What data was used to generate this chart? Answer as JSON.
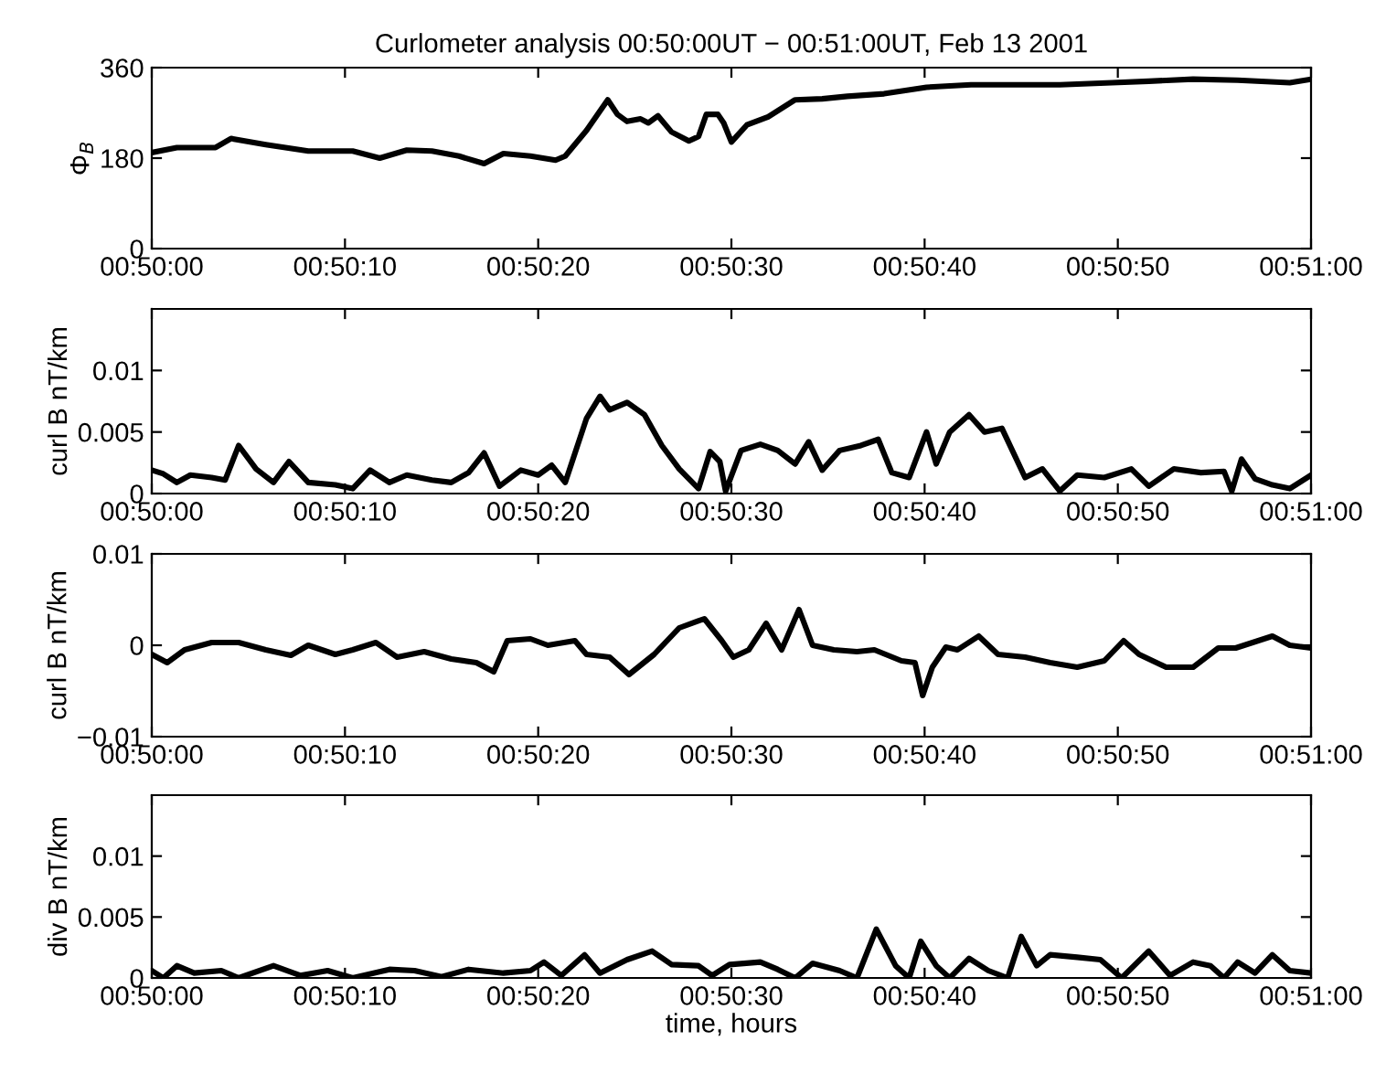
{
  "chart_data": [
    {
      "type": "line",
      "title": "Curlometer analysis 00:50:00UT − 00:51:00UT, Feb 13 2001",
      "ylabel": "Φ$_{B}$",
      "x": [
        "2001-02-13T00:50:00.0",
        "2001-02-13T00:50:01.3",
        "2001-02-13T00:50:03.3",
        "2001-02-13T00:50:04.1",
        "2001-02-13T00:50:05.9",
        "2001-02-13T00:50:08.1",
        "2001-02-13T00:50:10.4",
        "2001-02-13T00:50:11.8",
        "2001-02-13T00:50:13.2",
        "2001-02-13T00:50:14.5",
        "2001-02-13T00:50:15.9",
        "2001-02-13T00:50:17.2",
        "2001-02-13T00:50:18.2",
        "2001-02-13T00:50:19.6",
        "2001-02-13T00:50:20.9",
        "2001-02-13T00:50:21.4",
        "2001-02-13T00:50:22.5",
        "2001-02-13T00:50:23.6",
        "2001-02-13T00:50:24.1",
        "2001-02-13T00:50:24.6",
        "2001-02-13T00:50:25.3",
        "2001-02-13T00:50:25.7",
        "2001-02-13T00:50:26.2",
        "2001-02-13T00:50:26.9",
        "2001-02-13T00:50:27.8",
        "2001-02-13T00:50:28.3",
        "2001-02-13T00:50:28.7",
        "2001-02-13T00:50:29.3",
        "2001-02-13T00:50:29.6",
        "2001-02-13T00:50:30.0",
        "2001-02-13T00:50:30.8",
        "2001-02-13T00:50:31.9",
        "2001-02-13T00:50:33.3",
        "2001-02-13T00:50:34.7",
        "2001-02-13T00:50:36.0",
        "2001-02-13T00:50:37.9",
        "2001-02-13T00:50:40.1",
        "2001-02-13T00:50:42.4",
        "2001-02-13T00:50:47.0",
        "2001-02-13T00:50:49.7",
        "2001-02-13T00:50:51.6",
        "2001-02-13T00:50:53.9",
        "2001-02-13T00:50:56.2",
        "2001-02-13T00:50:58.9",
        "2001-02-13T00:51:00.0"
      ],
      "series": [
        {
          "color": "#000000",
          "values": [
            191,
            201,
            201,
            219,
            207,
            194,
            194,
            180,
            196,
            194,
            184,
            169,
            189,
            184,
            176,
            184,
            235,
            296,
            267,
            253,
            258,
            250,
            264,
            232,
            214,
            223,
            267,
            267,
            250,
            212,
            246,
            262,
            296,
            298,
            303,
            308,
            321,
            326,
            326,
            330,
            333,
            337,
            335,
            330,
            337
          ]
        }
      ],
      "xlim": [
        "2001-02-13T00:50:00",
        "2001-02-13T00:51:00"
      ],
      "xticks": [
        {
          "value": "2001-02-13T00:50:00",
          "label": "00:50:00"
        },
        {
          "value": "2001-02-13T00:50:10",
          "label": "00:50:10"
        },
        {
          "value": "2001-02-13T00:50:20",
          "label": "00:50:20"
        },
        {
          "value": "2001-02-13T00:50:30",
          "label": "00:50:30"
        },
        {
          "value": "2001-02-13T00:50:40",
          "label": "00:50:40"
        },
        {
          "value": "2001-02-13T00:50:50",
          "label": "00:50:50"
        },
        {
          "value": "2001-02-13T00:51:00",
          "label": "00:51:00"
        }
      ],
      "ylim": [
        0,
        360
      ],
      "yticks": [
        0,
        180,
        360
      ]
    },
    {
      "type": "line",
      "ylabel": "curl B nT/km",
      "x": [
        "2001-02-13T00:50:00.0",
        "2001-02-13T00:50:00.6",
        "2001-02-13T00:50:01.3",
        "2001-02-13T00:50:02.0",
        "2001-02-13T00:50:03.1",
        "2001-02-13T00:50:03.8",
        "2001-02-13T00:50:04.5",
        "2001-02-13T00:50:05.4",
        "2001-02-13T00:50:06.3",
        "2001-02-13T00:50:07.1",
        "2001-02-13T00:50:08.1",
        "2001-02-13T00:50:09.5",
        "2001-02-13T00:50:10.4",
        "2001-02-13T00:50:11.3",
        "2001-02-13T00:50:12.3",
        "2001-02-13T00:50:13.2",
        "2001-02-13T00:50:14.5",
        "2001-02-13T00:50:15.5",
        "2001-02-13T00:50:16.4",
        "2001-02-13T00:50:17.2",
        "2001-02-13T00:50:18.0",
        "2001-02-13T00:50:19.1",
        "2001-02-13T00:50:20.0",
        "2001-02-13T00:50:20.7",
        "2001-02-13T00:50:21.4",
        "2001-02-13T00:50:22.5",
        "2001-02-13T00:50:23.2",
        "2001-02-13T00:50:23.7",
        "2001-02-13T00:50:24.6",
        "2001-02-13T00:50:25.5",
        "2001-02-13T00:50:26.4",
        "2001-02-13T00:50:27.3",
        "2001-02-13T00:50:28.3",
        "2001-02-13T00:50:28.9",
        "2001-02-13T00:50:29.4",
        "2001-02-13T00:50:29.7",
        "2001-02-13T00:50:30.5",
        "2001-02-13T00:50:31.5",
        "2001-02-13T00:50:32.4",
        "2001-02-13T00:50:33.3",
        "2001-02-13T00:50:34.0",
        "2001-02-13T00:50:34.7",
        "2001-02-13T00:50:35.6",
        "2001-02-13T00:50:36.7",
        "2001-02-13T00:50:37.6",
        "2001-02-13T00:50:38.3",
        "2001-02-13T00:50:39.2",
        "2001-02-13T00:50:40.1",
        "2001-02-13T00:50:40.6",
        "2001-02-13T00:50:41.3",
        "2001-02-13T00:50:42.3",
        "2001-02-13T00:50:43.1",
        "2001-02-13T00:50:44.0",
        "2001-02-13T00:50:45.2",
        "2001-02-13T00:50:46.1",
        "2001-02-13T00:50:47.0",
        "2001-02-13T00:50:47.9",
        "2001-02-13T00:50:49.3",
        "2001-02-13T00:50:50.7",
        "2001-02-13T00:50:51.6",
        "2001-02-13T00:50:52.9",
        "2001-02-13T00:50:54.3",
        "2001-02-13T00:50:55.5",
        "2001-02-13T00:50:55.9",
        "2001-02-13T00:50:56.4",
        "2001-02-13T00:50:57.1",
        "2001-02-13T00:50:58.0",
        "2001-02-13T00:50:58.9",
        "2001-02-13T00:51:00.0"
      ],
      "series": [
        {
          "color": "#000000",
          "values": [
            0.0019,
            0.0016,
            0.0009,
            0.0015,
            0.0013,
            0.0011,
            0.0039,
            0.002,
            0.0009,
            0.0026,
            0.0009,
            0.0007,
            0.0004,
            0.0019,
            0.0009,
            0.0015,
            0.0011,
            0.0009,
            0.0017,
            0.0033,
            0.0006,
            0.0019,
            0.0015,
            0.0023,
            0.0009,
            0.0061,
            0.0079,
            0.0068,
            0.0074,
            0.0064,
            0.0039,
            0.002,
            0.0004,
            0.0034,
            0.0026,
            0.0002,
            0.0035,
            0.004,
            0.0035,
            0.0024,
            0.0042,
            0.0019,
            0.0035,
            0.0039,
            0.0044,
            0.0017,
            0.0013,
            0.005,
            0.0024,
            0.005,
            0.0064,
            0.005,
            0.0053,
            0.0013,
            0.002,
            0.0002,
            0.0015,
            0.0013,
            0.002,
            0.0006,
            0.002,
            0.0017,
            0.0018,
            0.0002,
            0.0028,
            0.0012,
            0.0007,
            0.0004,
            0.0015
          ]
        }
      ],
      "xlim": [
        "2001-02-13T00:50:00",
        "2001-02-13T00:51:00"
      ],
      "xticks": [
        {
          "value": "2001-02-13T00:50:00",
          "label": "00:50:00"
        },
        {
          "value": "2001-02-13T00:50:10",
          "label": "00:50:10"
        },
        {
          "value": "2001-02-13T00:50:20",
          "label": "00:50:20"
        },
        {
          "value": "2001-02-13T00:50:30",
          "label": "00:50:30"
        },
        {
          "value": "2001-02-13T00:50:40",
          "label": "00:50:40"
        },
        {
          "value": "2001-02-13T00:50:50",
          "label": "00:50:50"
        },
        {
          "value": "2001-02-13T00:51:00",
          "label": "00:51:00"
        }
      ],
      "ylim": [
        0,
        0.015
      ],
      "yticks": [
        0,
        0.005,
        0.01
      ]
    },
    {
      "type": "line",
      "ylabel": "curl B nT/km",
      "x": [
        "2001-02-13T00:50:00.0",
        "2001-02-13T00:50:00.8",
        "2001-02-13T00:50:01.7",
        "2001-02-13T00:50:03.1",
        "2001-02-13T00:50:04.5",
        "2001-02-13T00:50:05.9",
        "2001-02-13T00:50:07.2",
        "2001-02-13T00:50:08.1",
        "2001-02-13T00:50:09.5",
        "2001-02-13T00:50:10.4",
        "2001-02-13T00:50:11.6",
        "2001-02-13T00:50:12.7",
        "2001-02-13T00:50:14.1",
        "2001-02-13T00:50:15.5",
        "2001-02-13T00:50:16.8",
        "2001-02-13T00:50:17.7",
        "2001-02-13T00:50:18.4",
        "2001-02-13T00:50:19.6",
        "2001-02-13T00:50:20.5",
        "2001-02-13T00:50:21.9",
        "2001-02-13T00:50:22.5",
        "2001-02-13T00:50:23.7",
        "2001-02-13T00:50:24.7",
        "2001-02-13T00:50:26.0",
        "2001-02-13T00:50:27.3",
        "2001-02-13T00:50:28.6",
        "2001-02-13T00:50:29.5",
        "2001-02-13T00:50:30.1",
        "2001-02-13T00:50:30.9",
        "2001-02-13T00:50:31.8",
        "2001-02-13T00:50:32.6",
        "2001-02-13T00:50:33.5",
        "2001-02-13T00:50:34.2",
        "2001-02-13T00:50:35.3",
        "2001-02-13T00:50:36.5",
        "2001-02-13T00:50:37.4",
        "2001-02-13T00:50:38.8",
        "2001-02-13T00:50:39.5",
        "2001-02-13T00:50:39.9",
        "2001-02-13T00:50:40.4",
        "2001-02-13T00:50:41.1",
        "2001-02-13T00:50:41.7",
        "2001-02-13T00:50:42.8",
        "2001-02-13T00:50:43.8",
        "2001-02-13T00:50:45.2",
        "2001-02-13T00:50:46.5",
        "2001-02-13T00:50:47.9",
        "2001-02-13T00:50:49.3",
        "2001-02-13T00:50:50.3",
        "2001-02-13T00:50:51.1",
        "2001-02-13T00:50:52.5",
        "2001-02-13T00:50:53.9",
        "2001-02-13T00:50:55.2",
        "2001-02-13T00:50:56.1",
        "2001-02-13T00:50:58.0",
        "2001-02-13T00:50:58.9",
        "2001-02-13T00:51:00.0"
      ],
      "series": [
        {
          "color": "#000000",
          "values": [
            -0.001,
            -0.0019,
            -0.0005,
            0.0003,
            0.0003,
            -0.0005,
            -0.0011,
            0.0,
            -0.001,
            -0.0005,
            0.0003,
            -0.0013,
            -0.0007,
            -0.0015,
            -0.0019,
            -0.0029,
            0.0005,
            0.0007,
            0.0,
            0.0005,
            -0.001,
            -0.0013,
            -0.0032,
            -0.001,
            0.0019,
            0.0029,
            0.0005,
            -0.0013,
            -0.0005,
            0.0024,
            -0.0005,
            0.0039,
            0.0,
            -0.0005,
            -0.0007,
            -0.0005,
            -0.0017,
            -0.0019,
            -0.0055,
            -0.0024,
            -0.0002,
            -0.0005,
            0.001,
            -0.001,
            -0.0013,
            -0.0019,
            -0.0024,
            -0.0017,
            0.0005,
            -0.001,
            -0.0024,
            -0.0024,
            -0.0003,
            -0.0003,
            0.001,
            0.0,
            -0.0003
          ]
        }
      ],
      "xlim": [
        "2001-02-13T00:50:00",
        "2001-02-13T00:51:00"
      ],
      "xticks": [
        {
          "value": "2001-02-13T00:50:00",
          "label": "00:50:00"
        },
        {
          "value": "2001-02-13T00:50:10",
          "label": "00:50:10"
        },
        {
          "value": "2001-02-13T00:50:20",
          "label": "00:50:20"
        },
        {
          "value": "2001-02-13T00:50:30",
          "label": "00:50:30"
        },
        {
          "value": "2001-02-13T00:50:40",
          "label": "00:50:40"
        },
        {
          "value": "2001-02-13T00:50:50",
          "label": "00:50:50"
        },
        {
          "value": "2001-02-13T00:51:00",
          "label": "00:51:00"
        }
      ],
      "ylim": [
        -0.01,
        0.01
      ],
      "yticks": [
        {
          "value": -0.01,
          "label": "−0.01"
        },
        0,
        0.01
      ]
    },
    {
      "type": "line",
      "ylabel": "div B nT/km",
      "xlabel": "time, hours",
      "x": [
        "2001-02-13T00:50:00.0",
        "2001-02-13T00:50:00.6",
        "2001-02-13T00:50:01.3",
        "2001-02-13T00:50:02.2",
        "2001-02-13T00:50:03.6",
        "2001-02-13T00:50:04.5",
        "2001-02-13T00:50:06.3",
        "2001-02-13T00:50:07.7",
        "2001-02-13T00:50:09.1",
        "2001-02-13T00:50:10.4",
        "2001-02-13T00:50:12.3",
        "2001-02-13T00:50:13.6",
        "2001-02-13T00:50:15.0",
        "2001-02-13T00:50:16.4",
        "2001-02-13T00:50:18.2",
        "2001-02-13T00:50:19.6",
        "2001-02-13T00:50:20.3",
        "2001-02-13T00:50:21.2",
        "2001-02-13T00:50:22.4",
        "2001-02-13T00:50:23.2",
        "2001-02-13T00:50:24.6",
        "2001-02-13T00:50:25.9",
        "2001-02-13T00:50:26.9",
        "2001-02-13T00:50:28.3",
        "2001-02-13T00:50:29.0",
        "2001-02-13T00:50:29.9",
        "2001-02-13T00:50:31.5",
        "2001-02-13T00:50:32.4",
        "2001-02-13T00:50:33.3",
        "2001-02-13T00:50:34.2",
        "2001-02-13T00:50:35.6",
        "2001-02-13T00:50:36.5",
        "2001-02-13T00:50:37.5",
        "2001-02-13T00:50:38.5",
        "2001-02-13T00:50:39.2",
        "2001-02-13T00:50:39.8",
        "2001-02-13T00:50:40.6",
        "2001-02-13T00:50:41.3",
        "2001-02-13T00:50:42.3",
        "2001-02-13T00:50:43.3",
        "2001-02-13T00:50:44.3",
        "2001-02-13T00:50:45.0",
        "2001-02-13T00:50:45.8",
        "2001-02-13T00:50:46.5",
        "2001-02-13T00:50:47.9",
        "2001-02-13T00:50:49.1",
        "2001-02-13T00:50:50.2",
        "2001-02-13T00:50:51.6",
        "2001-02-13T00:50:52.7",
        "2001-02-13T00:50:53.9",
        "2001-02-13T00:50:54.8",
        "2001-02-13T00:50:55.5",
        "2001-02-13T00:50:56.2",
        "2001-02-13T00:50:57.1",
        "2001-02-13T00:50:58.0",
        "2001-02-13T00:50:58.9",
        "2001-02-13T00:51:00.0"
      ],
      "series": [
        {
          "color": "#000000",
          "values": [
            0.0006,
            0.0,
            0.001,
            0.0004,
            0.0006,
            0.0,
            0.001,
            0.0002,
            0.0006,
            0.0,
            0.0007,
            0.0006,
            0.0001,
            0.0007,
            0.0004,
            0.0006,
            0.0013,
            0.0002,
            0.0019,
            0.0004,
            0.0015,
            0.0022,
            0.0011,
            0.001,
            0.0002,
            0.0011,
            0.0013,
            0.0007,
            0.0,
            0.0012,
            0.0006,
            0.0,
            0.004,
            0.001,
            0.0,
            0.003,
            0.001,
            0.0,
            0.0016,
            0.0006,
            0.0,
            0.0034,
            0.001,
            0.0019,
            0.0017,
            0.0015,
            0.0,
            0.0022,
            0.0002,
            0.0013,
            0.001,
            0.0,
            0.0013,
            0.0004,
            0.0019,
            0.0006,
            0.0004
          ]
        }
      ],
      "xlim": [
        "2001-02-13T00:50:00",
        "2001-02-13T00:51:00"
      ],
      "xticks": [
        {
          "value": "2001-02-13T00:50:00",
          "label": "00:50:00"
        },
        {
          "value": "2001-02-13T00:50:10",
          "label": "00:50:10"
        },
        {
          "value": "2001-02-13T00:50:20",
          "label": "00:50:20"
        },
        {
          "value": "2001-02-13T00:50:30",
          "label": "00:50:30"
        },
        {
          "value": "2001-02-13T00:50:40",
          "label": "00:50:40"
        },
        {
          "value": "2001-02-13T00:50:50",
          "label": "00:50:50"
        },
        {
          "value": "2001-02-13T00:51:00",
          "label": "00:51:00"
        }
      ],
      "ylim": [
        0,
        0.015
      ],
      "yticks": [
        0,
        0.005,
        0.01
      ]
    }
  ]
}
